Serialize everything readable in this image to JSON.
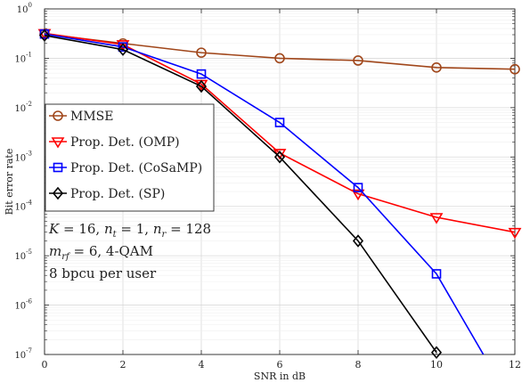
{
  "chart_data": {
    "type": "line",
    "xlabel": "SNR in dB",
    "ylabel": "Bit error rate",
    "x_scale": "linear",
    "y_scale": "log",
    "xlim": [
      0,
      12
    ],
    "ylim": [
      1e-07,
      1
    ],
    "grid": true,
    "legend_position": "middle-left",
    "x_ticks": [
      0,
      2,
      4,
      6,
      8,
      10,
      12
    ],
    "x_tick_labels": [
      "0",
      "2",
      "4",
      "6",
      "8",
      "10",
      "12"
    ],
    "y_ticks": [
      1,
      0.1,
      0.01,
      0.001,
      0.0001,
      1e-05,
      1e-06,
      1e-07
    ],
    "y_tick_bases": [
      "10",
      "10",
      "10",
      "10",
      "10",
      "10",
      "10",
      "10"
    ],
    "y_tick_exps": [
      "0",
      "-1",
      "-2",
      "-3",
      "-4",
      "-5",
      "-6",
      "-7"
    ],
    "series": [
      {
        "name": "MMSE",
        "color": "#a0461a",
        "marker": "circle",
        "x": [
          0,
          2,
          4,
          6,
          8,
          10,
          12
        ],
        "y": [
          0.31,
          0.2,
          0.13,
          0.1,
          0.09,
          0.065,
          0.06
        ]
      },
      {
        "name": "Prop. Det. (OMP)",
        "color": "#ff0000",
        "marker": "triangle-down",
        "x": [
          0,
          2,
          4,
          6,
          8,
          10,
          12
        ],
        "y": [
          0.32,
          0.19,
          0.03,
          0.0012,
          0.00018,
          6e-05,
          3e-05
        ]
      },
      {
        "name": "Prop. Det. (CoSaMP)",
        "color": "#0000ff",
        "marker": "square",
        "x": [
          0,
          2,
          4,
          6,
          8,
          10,
          12
        ],
        "y": [
          0.31,
          0.17,
          0.048,
          0.005,
          0.00024,
          4.3e-06,
          8e-09
        ],
        "markers_until_x": 10
      },
      {
        "name": "Prop. Det. (SP)",
        "color": "#000000",
        "marker": "diamond",
        "x": [
          0,
          2,
          4,
          6,
          8,
          10
        ],
        "y": [
          0.29,
          0.15,
          0.027,
          0.001,
          2e-05,
          1.1e-07
        ]
      }
    ],
    "annotations": [
      {
        "parts": [
          {
            "t": "K",
            "i": true
          },
          {
            "t": " = 16, "
          },
          {
            "t": "n",
            "i": true
          },
          {
            "t": "t",
            "i": true,
            "sub": true
          },
          {
            "t": " = 1, "
          },
          {
            "t": "n",
            "i": true
          },
          {
            "t": "r",
            "i": true,
            "sub": true
          },
          {
            "t": " = 128"
          }
        ]
      },
      {
        "parts": [
          {
            "t": "m",
            "i": true
          },
          {
            "t": "rf",
            "i": true,
            "sub": true
          },
          {
            "t": " = 6, 4-QAM"
          }
        ]
      },
      {
        "parts": [
          {
            "t": "8 bpcu per user"
          }
        ]
      }
    ]
  }
}
